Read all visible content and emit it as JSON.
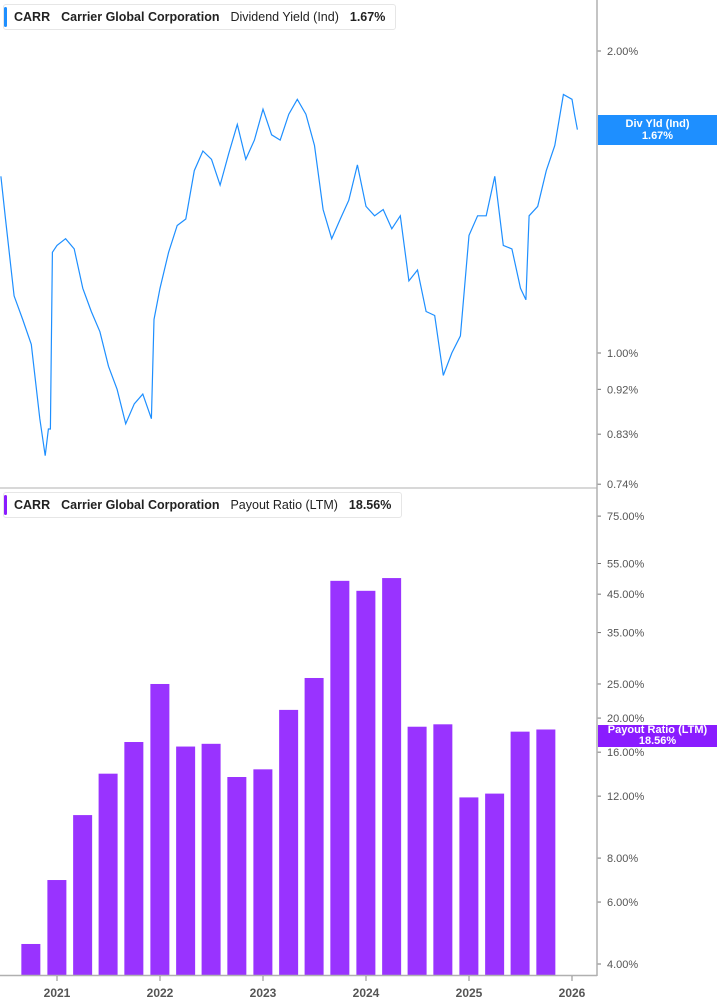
{
  "colors": {
    "dividend_yield": "#1e8fff",
    "payout_ratio": "#9933ff",
    "payout_tag": "#8a1cff",
    "axis": "#b0b0b0"
  },
  "top_legend": {
    "ticker": "CARR",
    "company": "Carrier Global Corporation",
    "metric": "Dividend Yield (Ind)",
    "value": "1.67%"
  },
  "top_tag": {
    "label": "Div Yld (Ind)",
    "value": "1.67%"
  },
  "bottom_legend": {
    "ticker": "CARR",
    "company": "Carrier Global Corporation",
    "metric": "Payout Ratio (LTM)",
    "value": "18.56%"
  },
  "bottom_tag": {
    "label": "Payout Ratio (LTM)",
    "value": "18.56%"
  },
  "x_ticks": [
    "2021",
    "2022",
    "2023",
    "2024",
    "2025",
    "2026"
  ],
  "chart_data": [
    {
      "type": "line",
      "series_label": "Dividend Yield (Ind)",
      "y_scale": "log",
      "y_ticks": [
        "2.00%",
        "1.00%",
        "0.92%",
        "0.83%",
        "0.74%"
      ],
      "y_tick_values": [
        2.0,
        1.0,
        0.92,
        0.83,
        0.74
      ],
      "ylim": [
        0.74,
        2.2
      ],
      "x": [
        "2020-06-15",
        "2020-07-01",
        "2020-08-01",
        "2020-09-01",
        "2020-10-01",
        "2020-11-01",
        "2020-11-20",
        "2020-12-01",
        "2020-12-08",
        "2020-12-15",
        "2021-01-01",
        "2021-02-01",
        "2021-03-01",
        "2021-04-01",
        "2021-05-01",
        "2021-06-01",
        "2021-07-01",
        "2021-08-01",
        "2021-09-01",
        "2021-10-01",
        "2021-11-01",
        "2021-12-01",
        "2021-12-10",
        "2022-01-01",
        "2022-02-01",
        "2022-03-01",
        "2022-04-01",
        "2022-05-01",
        "2022-06-01",
        "2022-07-01",
        "2022-08-01",
        "2022-09-01",
        "2022-10-01",
        "2022-11-01",
        "2022-12-01",
        "2023-01-01",
        "2023-02-01",
        "2023-03-01",
        "2023-04-01",
        "2023-05-01",
        "2023-06-01",
        "2023-07-01",
        "2023-08-01",
        "2023-09-01",
        "2023-10-01",
        "2023-11-01",
        "2023-12-01",
        "2024-01-01",
        "2024-02-01",
        "2024-03-01",
        "2024-04-01",
        "2024-05-01",
        "2024-06-01",
        "2024-07-01",
        "2024-08-01",
        "2024-09-01",
        "2024-10-01",
        "2024-11-01",
        "2024-12-01",
        "2025-01-01",
        "2025-02-01",
        "2025-03-01",
        "2025-04-01",
        "2025-05-01",
        "2025-06-01",
        "2025-07-01",
        "2025-07-20",
        "2025-08-01",
        "2025-09-01",
        "2025-10-01",
        "2025-11-01",
        "2025-12-01",
        "2026-01-01",
        "2026-01-10",
        "2026-01-20"
      ],
      "y": [
        1.5,
        1.36,
        1.14,
        1.08,
        1.02,
        0.86,
        0.79,
        0.84,
        0.84,
        1.26,
        1.28,
        1.3,
        1.27,
        1.16,
        1.1,
        1.05,
        0.97,
        0.92,
        0.85,
        0.89,
        0.91,
        0.86,
        1.08,
        1.16,
        1.26,
        1.34,
        1.36,
        1.52,
        1.59,
        1.56,
        1.47,
        1.58,
        1.69,
        1.56,
        1.63,
        1.75,
        1.65,
        1.63,
        1.73,
        1.79,
        1.73,
        1.61,
        1.39,
        1.3,
        1.36,
        1.42,
        1.54,
        1.4,
        1.37,
        1.39,
        1.33,
        1.37,
        1.18,
        1.21,
        1.1,
        1.09,
        0.95,
        1.0,
        1.04,
        1.31,
        1.37,
        1.37,
        1.5,
        1.28,
        1.27,
        1.16,
        1.13,
        1.37,
        1.4,
        1.52,
        1.61,
        1.81,
        1.79,
        1.73,
        1.67
      ]
    },
    {
      "type": "bar",
      "series_label": "Payout Ratio (LTM)",
      "y_scale": "log",
      "y_ticks": [
        "75.00%",
        "55.00%",
        "45.00%",
        "35.00%",
        "25.00%",
        "20.00%",
        "16.00%",
        "12.00%",
        "8.00%",
        "6.00%",
        "4.00%"
      ],
      "y_tick_values": [
        75,
        55,
        45,
        35,
        25,
        20,
        16,
        12,
        8,
        6,
        4
      ],
      "x": [
        "2020-09-30",
        "2020-12-31",
        "2021-03-31",
        "2021-06-30",
        "2021-09-30",
        "2021-12-31",
        "2022-03-31",
        "2022-06-30",
        "2022-09-30",
        "2022-12-31",
        "2023-03-31",
        "2023-06-30",
        "2023-09-30",
        "2023-12-31",
        "2024-03-31",
        "2024-06-30",
        "2024-09-30",
        "2024-12-31",
        "2025-03-31",
        "2025-06-30",
        "2025-09-30"
      ],
      "values": [
        4.56,
        6.93,
        10.6,
        13.9,
        17.1,
        25.0,
        16.6,
        16.9,
        13.6,
        14.3,
        21.1,
        26.0,
        49.1,
        46.0,
        50.0,
        18.9,
        19.2,
        11.9,
        12.2,
        18.3,
        18.56
      ]
    }
  ]
}
